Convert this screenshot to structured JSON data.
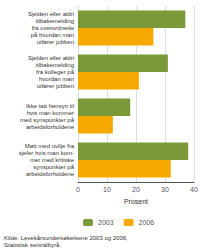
{
  "chart_data": {
    "type": "bar",
    "orientation": "horizontal",
    "categories": [
      "Sjelden eller aldri\ntilbakemelding\nfra overordnede\npå hvordan man\nutfører jobben",
      "Sjelden eller aldri\ntilbakemelding\nfra kolleger på\nhvordan man\nutfører jobben",
      "Ikke tatt hensyn til\nhvis man kommer\nmed synspunkter på\narbeidsforholdene",
      "Møtt med uvilje fra\nsjefer hvis man kom-\nmer med kritiske\nsynspunkter på\narbeidsforholdene"
    ],
    "series": [
      {
        "name": "2003",
        "color": "#7a9a3a",
        "values": [
          37,
          31,
          18,
          38
        ]
      },
      {
        "name": "2006",
        "color": "#f5a800",
        "values": [
          26,
          21,
          12,
          32
        ]
      }
    ],
    "xlabel": "Prosent",
    "xlim": [
      0,
      40
    ],
    "xticks": [
      0,
      10,
      20,
      30,
      40
    ],
    "grid": true,
    "legend": "bottom",
    "annotations": [
      "Kilde: Levekårsundersøkelsene 2003 og 2006,\nStatistisk sentralbyrå."
    ]
  }
}
